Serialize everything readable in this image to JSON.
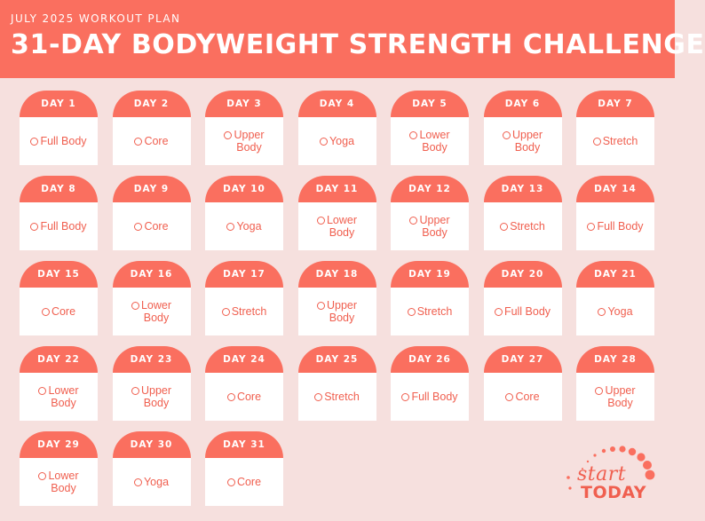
{
  "header": {
    "subtitle": "JULY 2025 WORKOUT PLAN",
    "title": "31-DAY BODYWEIGHT STRENGTH CHALLENGE"
  },
  "colors": {
    "accent": "#fa6f5f",
    "background": "#f6e0de",
    "card": "#ffffff",
    "text_accent": "#f05f4f"
  },
  "days": [
    {
      "day": "DAY 1",
      "workout": "Full Body"
    },
    {
      "day": "DAY 2",
      "workout": "Core"
    },
    {
      "day": "DAY 3",
      "workout": "Upper\nBody"
    },
    {
      "day": "DAY 4",
      "workout": "Yoga"
    },
    {
      "day": "DAY 5",
      "workout": "Lower\nBody"
    },
    {
      "day": "DAY 6",
      "workout": "Upper\nBody"
    },
    {
      "day": "DAY 7",
      "workout": "Stretch"
    },
    {
      "day": "DAY 8",
      "workout": "Full Body"
    },
    {
      "day": "DAY 9",
      "workout": "Core"
    },
    {
      "day": "DAY 10",
      "workout": "Yoga"
    },
    {
      "day": "DAY 11",
      "workout": "Lower\nBody"
    },
    {
      "day": "DAY 12",
      "workout": "Upper\nBody"
    },
    {
      "day": "DAY 13",
      "workout": "Stretch"
    },
    {
      "day": "DAY 14",
      "workout": "Full Body"
    },
    {
      "day": "DAY 15",
      "workout": "Core"
    },
    {
      "day": "DAY 16",
      "workout": "Lower\nBody"
    },
    {
      "day": "DAY 17",
      "workout": "Stretch"
    },
    {
      "day": "DAY 18",
      "workout": "Upper\nBody"
    },
    {
      "day": "DAY 19",
      "workout": "Stretch"
    },
    {
      "day": "DAY 20",
      "workout": "Full Body"
    },
    {
      "day": "DAY 21",
      "workout": "Yoga"
    },
    {
      "day": "DAY 22",
      "workout": "Lower\nBody"
    },
    {
      "day": "DAY 23",
      "workout": "Upper\nBody"
    },
    {
      "day": "DAY 24",
      "workout": "Core"
    },
    {
      "day": "DAY 25",
      "workout": "Stretch"
    },
    {
      "day": "DAY 26",
      "workout": "Full Body"
    },
    {
      "day": "DAY 27",
      "workout": "Core"
    },
    {
      "day": "DAY 28",
      "workout": "Upper\nBody"
    },
    {
      "day": "DAY 29",
      "workout": "Lower\nBody"
    },
    {
      "day": "DAY 30",
      "workout": "Yoga"
    },
    {
      "day": "DAY 31",
      "workout": "Core"
    }
  ],
  "logo": {
    "line1": "start",
    "line2": "TODAY",
    "icon": "dot-arc-logo"
  }
}
